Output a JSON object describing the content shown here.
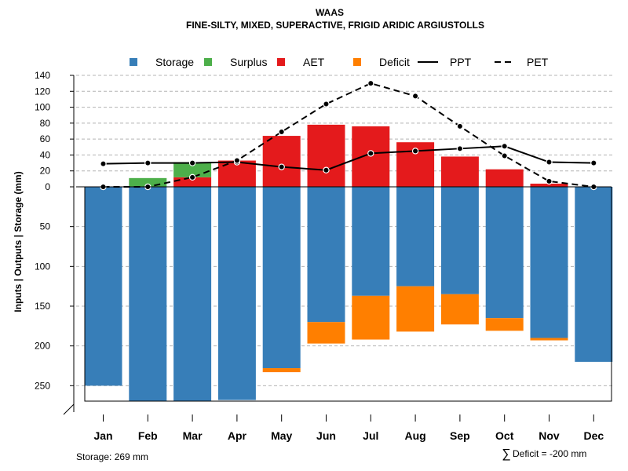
{
  "chart_data": {
    "type": "bar",
    "title": "WAAS",
    "subtitle": "FINE-SILTY, MIXED, SUPERACTIVE, FRIGID ARIDIC ARGIUSTOLLS",
    "ylabel": "Inputs | Outputs | Storage    (mm)",
    "categories": [
      "Jan",
      "Feb",
      "Mar",
      "Apr",
      "May",
      "Jun",
      "Jul",
      "Aug",
      "Sep",
      "Oct",
      "Nov",
      "Dec"
    ],
    "upper_ticks": [
      0,
      20,
      40,
      60,
      80,
      100,
      120,
      140
    ],
    "lower_ticks": [
      50,
      100,
      150,
      200,
      250
    ],
    "ylim_upper": [
      0,
      140
    ],
    "ylim_lower": [
      0,
      269
    ],
    "series": [
      {
        "name": "Storage",
        "color": "#377EB8",
        "values": [
          250,
          269,
          269,
          268,
          228,
          170,
          137,
          125,
          135,
          165,
          190,
          220
        ]
      },
      {
        "name": "Surplus",
        "color": "#4DAF4A",
        "values": [
          0,
          11,
          19,
          0,
          0,
          0,
          0,
          0,
          0,
          0,
          0,
          0
        ]
      },
      {
        "name": "AET",
        "color": "#E41A1C",
        "values": [
          0,
          0,
          12,
          33,
          64,
          78,
          76,
          56,
          38,
          22,
          4,
          0
        ]
      },
      {
        "name": "Deficit",
        "color": "#FF7F00",
        "values": [
          0,
          0,
          0,
          0,
          5,
          27,
          55,
          57,
          38,
          16,
          3,
          0
        ]
      },
      {
        "name": "PPT",
        "color": "#000000",
        "style": "solid",
        "values": [
          29,
          30,
          30,
          31,
          25,
          21,
          42,
          45,
          48,
          51,
          31,
          30
        ]
      },
      {
        "name": "PET",
        "color": "#000000",
        "style": "dashed",
        "values": [
          0,
          0,
          12,
          33,
          69,
          104,
          130,
          114,
          76,
          39,
          7,
          0
        ]
      }
    ],
    "legend_position": "top",
    "grid": true
  },
  "notes": {
    "storage": "Storage: 269 mm",
    "deficit_symbol": "∑",
    "deficit": "Deficit = -200 mm"
  }
}
